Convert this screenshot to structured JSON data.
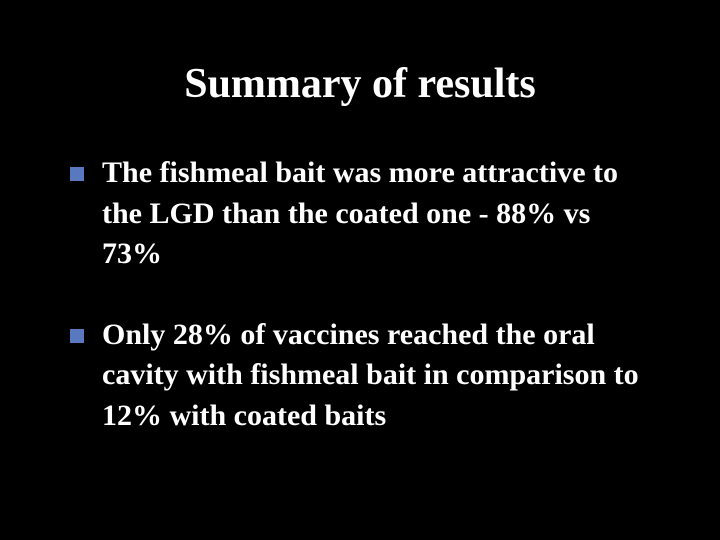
{
  "slide": {
    "background_color": "#000000",
    "text_color": "#ffffff",
    "bullet_color": "#5878c0",
    "font_family": "Comic Sans MS",
    "title": {
      "text": "Summary of results",
      "fontsize": 42,
      "weight": "bold",
      "align": "center"
    },
    "bullets": [
      {
        "text": "The fishmeal bait was more attractive to the LGD than the coated one - 88% vs 73%"
      },
      {
        "text": "Only 28% of vaccines reached the oral cavity with fishmeal bait in comparison to 12% with coated baits"
      }
    ],
    "bullet_fontsize": 30,
    "bullet_weight": "bold",
    "bullet_marker_size": 14
  }
}
